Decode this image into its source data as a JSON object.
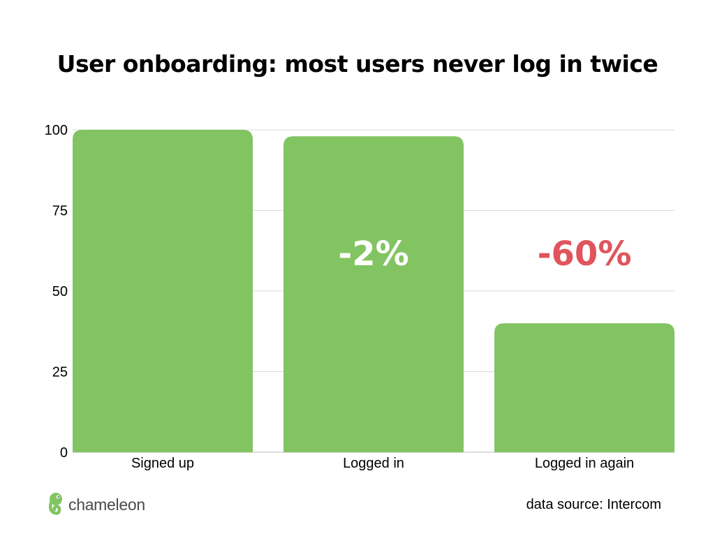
{
  "chart_data": {
    "type": "bar",
    "title": "User onboarding: most users never log in twice",
    "categories": [
      "Signed up",
      "Logged in",
      "Logged in again"
    ],
    "values": [
      100,
      98,
      40
    ],
    "ylim": [
      0,
      100
    ],
    "yticks": [
      0,
      25,
      50,
      75,
      100
    ],
    "xlabel": "",
    "ylabel": "",
    "grid": true,
    "bar_color": "#82c462",
    "annotations": [
      {
        "category": "Logged in",
        "text": "-2%",
        "color": "#ffffff"
      },
      {
        "category": "Logged in again",
        "text": "-60%",
        "color": "#e0545c"
      }
    ]
  },
  "footer": {
    "logo_text": "chameleon",
    "logo_icon": "chameleon-icon",
    "source": "data source: Intercom"
  }
}
